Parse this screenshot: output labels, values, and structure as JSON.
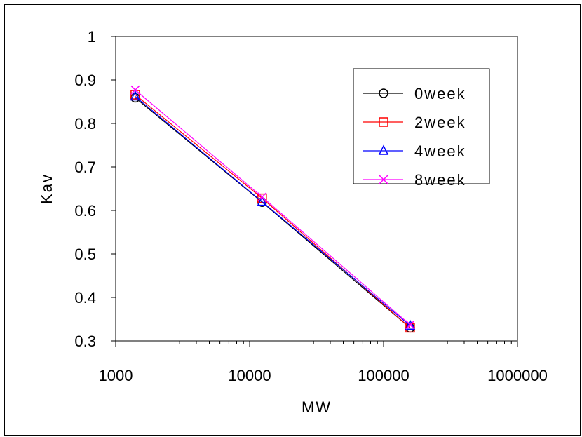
{
  "chart_data": {
    "type": "line",
    "xlabel": "MW",
    "ylabel": "Kav",
    "x_scale": "log",
    "xlim": [
      1000,
      1000000
    ],
    "ylim": [
      0.3,
      1.0
    ],
    "x_ticks": [
      "1000",
      "10000",
      "100000",
      "1000000"
    ],
    "y_ticks": [
      "0.3",
      "0.4",
      "0.5",
      "0.6",
      "0.7",
      "0.8",
      "0.9",
      "1"
    ],
    "grid": false,
    "legend_position": "top-right",
    "series": [
      {
        "name": "0week",
        "color": "#000000",
        "marker": "circle",
        "x": [
          1400,
          12400,
          158000
        ],
        "y": [
          0.859,
          0.619,
          0.33
        ]
      },
      {
        "name": "2week",
        "color": "#ff0000",
        "marker": "square",
        "x": [
          1400,
          12400,
          158000
        ],
        "y": [
          0.866,
          0.628,
          0.33
        ]
      },
      {
        "name": "4week",
        "color": "#0000ff",
        "marker": "triangle",
        "x": [
          1400,
          12400,
          158000
        ],
        "y": [
          0.862,
          0.62,
          0.335
        ]
      },
      {
        "name": "8week",
        "color": "#ff00ff",
        "marker": "x",
        "x": [
          1400,
          12400,
          158000
        ],
        "y": [
          0.877,
          0.631,
          0.337
        ]
      }
    ]
  }
}
